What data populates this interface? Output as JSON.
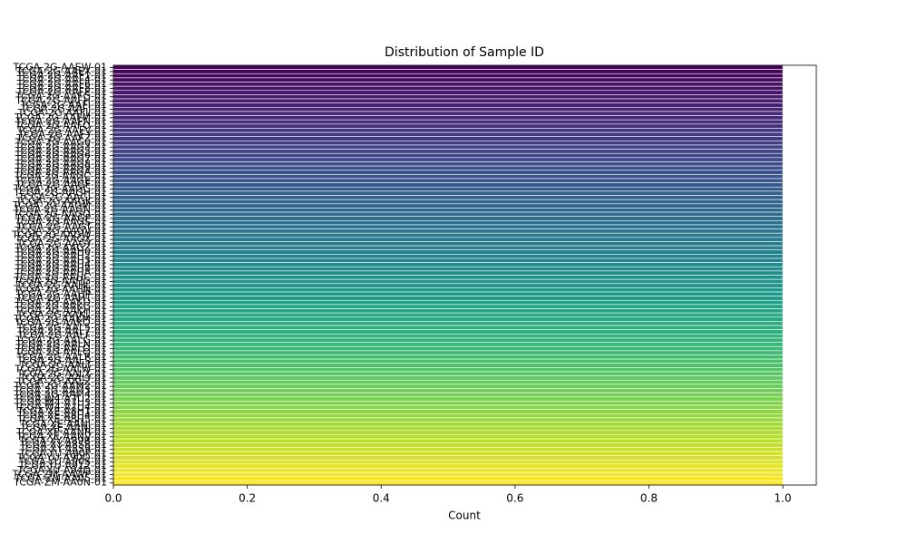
{
  "chart_data": {
    "type": "barh",
    "title": "Distribution of Sample ID",
    "x_label": "Count",
    "categories": [
      "TCGA-2G-AAEW-01",
      "TCGA-2G-AAEX-01",
      "TCGA-2G-AAF1-01",
      "TCGA-2G-AAF4-01",
      "TCGA-2G-AAF6-01",
      "TCGA-2G-AAF8-01",
      "TCGA-2G-AAFE-01",
      "TCGA-2G-AAFG-01",
      "TCGA-2G-AAFH-01",
      "TCGA-2G-AAFI-01",
      "TCGA-2G-AAFJ-01",
      "TCGA-2G-AAFL-01",
      "TCGA-2G-AAFM-01",
      "TCGA-2G-AAFN-01",
      "TCGA-2G-AAFO-01",
      "TCGA-2G-AAFV-01",
      "TCGA-2G-AAFY-01",
      "TCGA-2G-AAFZ-01",
      "TCGA-2G-AAG0-01",
      "TCGA-2G-AAG3-01",
      "TCGA-2G-AAG5-01",
      "TCGA-2G-AAG6-01",
      "TCGA-2G-AAG7-01",
      "TCGA-2G-AAG8-01",
      "TCGA-2G-AAG9-01",
      "TCGA-2G-AAGA-01",
      "TCGA-2G-AAGC-01",
      "TCGA-2G-AAGE-01",
      "TCGA-2G-AAGF-01",
      "TCGA-2G-AAGG-01",
      "TCGA-2G-AAGH-01",
      "TCGA-2G-AAGI-01",
      "TCGA-2G-AAGK-01",
      "TCGA-2G-AAGM-01",
      "TCGA-2G-AAGN-01",
      "TCGA-2G-AAGO-01",
      "TCGA-2G-AAGP-01",
      "TCGA-2G-AAGS-01",
      "TCGA-2G-AAGT-01",
      "TCGA-2G-AAGV-01",
      "TCGA-2G-AAGW-01",
      "TCGA-2G-AAGX-01",
      "TCGA-2G-AAGY-01",
      "TCGA-2G-AAGZ-01",
      "TCGA-2G-AAH0-01",
      "TCGA-2G-AAH2-01",
      "TCGA-2G-AAH3-01",
      "TCGA-2G-AAH4-01",
      "TCGA-2G-AAH8-01",
      "TCGA-2G-AAHA-01",
      "TCGA-2G-AAHC-01",
      "TCGA-2G-AAHG-01",
      "TCGA-2G-AAHL-01",
      "TCGA-2G-AAHN-01",
      "TCGA-2G-AAHP-01",
      "TCGA-2G-AAHT-01",
      "TCGA-2G-AAKD-01",
      "TCGA-2G-AAKG-01",
      "TCGA-2G-AAKH-01",
      "TCGA-2G-AAKL-01",
      "TCGA-2G-AAKM-01",
      "TCGA-2G-AAKO-01",
      "TCGA-2G-AAL5-01",
      "TCGA-2G-AAL7-01",
      "TCGA-2G-AALF-01",
      "TCGA-2G-AALG-01",
      "TCGA-2G-AALN-01",
      "TCGA-2G-AALO-01",
      "TCGA-2G-AALQ-01",
      "TCGA-2G-AALR-01",
      "TCGA-2G-AALS-01",
      "TCGA-2G-AALT-01",
      "TCGA-2G-AALW-01",
      "TCGA-2G-AALX-01",
      "TCGA-2G-AALY-01",
      "TCGA-2G-AALZ-01",
      "TCGA-2G-AAM2-01",
      "TCGA-2G-AAM3-01",
      "TCGA-2G-AAM4-01",
      "TCGA-W4-A7U2-01",
      "TCGA-W4-A7U3-01",
      "TCGA-W4-A7U4-01",
      "TCGA-XE-A8H1-01",
      "TCGA-XE-A8H4-01",
      "TCGA-XE-A8H5-01",
      "TCGA-XE-AANI-01",
      "TCGA-XE-AANJ-01",
      "TCGA-XE-AANR-01",
      "TCGA-XE-AANV-01",
      "TCGA-XY-A89B-01",
      "TCGA-XY-A8S8-01",
      "TCGA-XY-A8S9-01",
      "TCGA-YU-A90P-01",
      "TCGA-YU-A90Q-01",
      "TCGA-YU-A90S-01",
      "TCGA-YU-A912-01",
      "TCGA-YU-A94D-01",
      "TCGA-ZM-AAWP-01",
      "TCGA-ZM-AA05-01",
      "TCGA-ZM-AA0N-01"
    ],
    "values": [
      1,
      1,
      1,
      1,
      1,
      1,
      1,
      1,
      1,
      1,
      1,
      1,
      1,
      1,
      1,
      1,
      1,
      1,
      1,
      1,
      1,
      1,
      1,
      1,
      1,
      1,
      1,
      1,
      1,
      1,
      1,
      1,
      1,
      1,
      1,
      1,
      1,
      1,
      1,
      1,
      1,
      1,
      1,
      1,
      1,
      1,
      1,
      1,
      1,
      1,
      1,
      1,
      1,
      1,
      1,
      1,
      1,
      1,
      1,
      1,
      1,
      1,
      1,
      1,
      1,
      1,
      1,
      1,
      1,
      1,
      1,
      1,
      1,
      1,
      1,
      1,
      1,
      1,
      1,
      1,
      1,
      1,
      1,
      1,
      1,
      1,
      1,
      1,
      1,
      1,
      1,
      1,
      1,
      1,
      1,
      1,
      1,
      1,
      1,
      1
    ],
    "palette": "viridis",
    "xlim": [
      0,
      1.05
    ],
    "xticks": [
      {
        "value": 0,
        "label": "0.0"
      },
      0.2,
      0.4,
      0.6,
      0.8,
      {
        "value": 1,
        "label": "1.0"
      }
    ]
  }
}
